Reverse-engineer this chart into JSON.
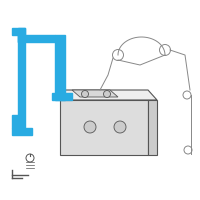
{
  "bg_color": "#ffffff",
  "part_color": "#29abe2",
  "battery_outline": "#555555",
  "wire_color": "#888888",
  "fig_bg": "#ffffff",
  "bracket_lw": 0.5,
  "wire_lw": 0.7,
  "batt_lw": 0.8
}
